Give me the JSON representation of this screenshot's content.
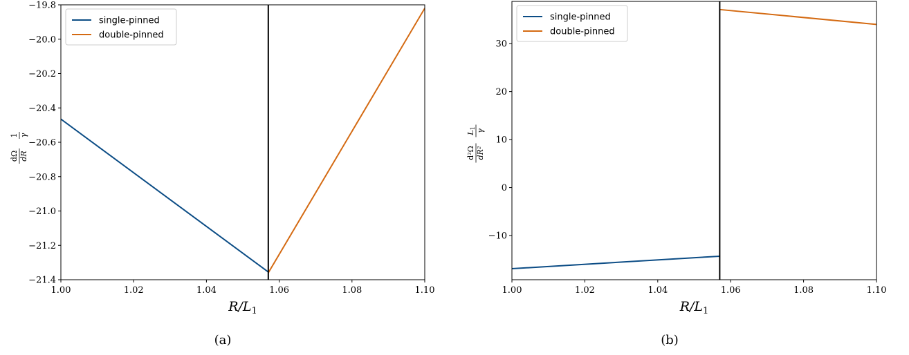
{
  "chart_data": [
    {
      "type": "line",
      "panel_label": "(a)",
      "xlabel": "R/L",
      "xlabel_sub": "1",
      "ylabel_parts": [
        "dΩ",
        "dR",
        "1",
        "γ"
      ],
      "xlim": [
        1.0,
        1.1
      ],
      "ylim": [
        -21.4,
        -19.8
      ],
      "xticks": [
        1.0,
        1.02,
        1.04,
        1.06,
        1.08,
        1.1
      ],
      "xtick_labels": [
        "1.00",
        "1.02",
        "1.04",
        "1.06",
        "1.08",
        "1.10"
      ],
      "yticks": [
        -21.4,
        -21.2,
        -21.0,
        -20.8,
        -20.6,
        -20.4,
        -20.2,
        -20.0,
        -19.8
      ],
      "ytick_labels": [
        "−21.4",
        "−21.2",
        "−21.0",
        "−20.8",
        "−20.6",
        "−20.4",
        "−20.2",
        "−20.0",
        "−19.8"
      ],
      "vline_x": 1.057,
      "legend_position": "top-left",
      "grid": false,
      "series": [
        {
          "name": "single-pinned",
          "color": "#0b4c85",
          "x": [
            1.0,
            1.057
          ],
          "y": [
            -20.465,
            -21.355
          ]
        },
        {
          "name": "double-pinned",
          "color": "#d46a12",
          "x": [
            1.057,
            1.1
          ],
          "y": [
            -21.36,
            -19.82
          ]
        }
      ]
    },
    {
      "type": "line",
      "panel_label": "(b)",
      "xlabel": "R/L",
      "xlabel_sub": "1",
      "ylabel_parts": [
        "d²Ω",
        "dR²",
        "L",
        "1",
        "γ"
      ],
      "xlim": [
        1.0,
        1.1
      ],
      "ylim": [
        -19.2,
        38.8
      ],
      "xticks": [
        1.0,
        1.02,
        1.04,
        1.06,
        1.08,
        1.1
      ],
      "xtick_labels": [
        "1.00",
        "1.02",
        "1.04",
        "1.06",
        "1.08",
        "1.10"
      ],
      "yticks": [
        -10,
        0,
        10,
        20,
        30
      ],
      "ytick_labels": [
        "−10",
        "0",
        "10",
        "20",
        "30"
      ],
      "vline_x": 1.057,
      "legend_position": "top-left",
      "grid": false,
      "series": [
        {
          "name": "single-pinned",
          "color": "#0b4c85",
          "x": [
            1.0,
            1.057
          ],
          "y": [
            -16.9,
            -14.3
          ]
        },
        {
          "name": "double-pinned",
          "color": "#d46a12",
          "x": [
            1.057,
            1.1
          ],
          "y": [
            37.1,
            34.0
          ]
        }
      ]
    }
  ]
}
